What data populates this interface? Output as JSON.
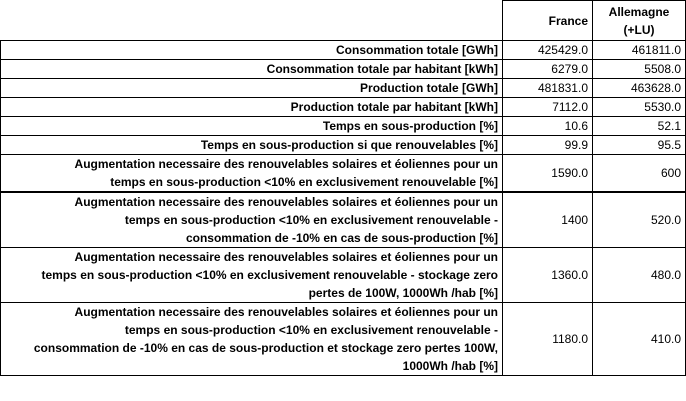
{
  "table": {
    "headers": {
      "france": "France",
      "germany_line1": "Allemagne",
      "germany_line2": "(+LU)"
    },
    "rows": [
      {
        "label_lines": [
          "Consommation totale [GWh]"
        ],
        "france": "425429.0",
        "germany": "461811.0"
      },
      {
        "label_lines": [
          "Consommation totale par habitant [kWh]"
        ],
        "france": "6279.0",
        "germany": "5508.0"
      },
      {
        "label_lines": [
          "Production totale [GWh]"
        ],
        "france": "481831.0",
        "germany": "463628.0"
      },
      {
        "label_lines": [
          "Production totale par habitant [kWh]"
        ],
        "france": "7112.0",
        "germany": "5530.0"
      },
      {
        "label_lines": [
          "Temps en sous-production [%]"
        ],
        "france": "10.6",
        "germany": "52.1"
      },
      {
        "label_lines": [
          "Temps en sous-production si que renouvelables [%]"
        ],
        "france": "99.9",
        "germany": "95.5"
      },
      {
        "label_lines": [
          "Augmentation necessaire des renouvelables solaires et éoliennes pour un",
          "temps en sous-production <10% en exclusivement renouvelable [%]"
        ],
        "france": "1590.0",
        "germany": "600"
      },
      {
        "label_lines": [
          "Augmentation necessaire des renouvelables solaires et éoliennes pour un",
          "temps en sous-production <10% en exclusivement renouvelable -",
          "consommation de -10% en cas de sous-production [%]"
        ],
        "france": "1400",
        "germany": "520.0"
      },
      {
        "label_lines": [
          "Augmentation necessaire des renouvelables solaires et éoliennes pour un",
          "temps en sous-production <10% en exclusivement renouvelable - stockage zero",
          "pertes de 100W, 1000Wh /hab [%]"
        ],
        "france": "1360.0",
        "germany": "480.0"
      },
      {
        "label_lines": [
          "Augmentation necessaire des renouvelables solaires et éoliennes pour un",
          "temps en sous-production <10% en exclusivement renouvelable -",
          "consommation de -10% en cas de sous-production et stockage zero pertes 100W,",
          "1000Wh /hab [%]"
        ],
        "france": "1180.0",
        "germany": "410.0"
      }
    ]
  }
}
